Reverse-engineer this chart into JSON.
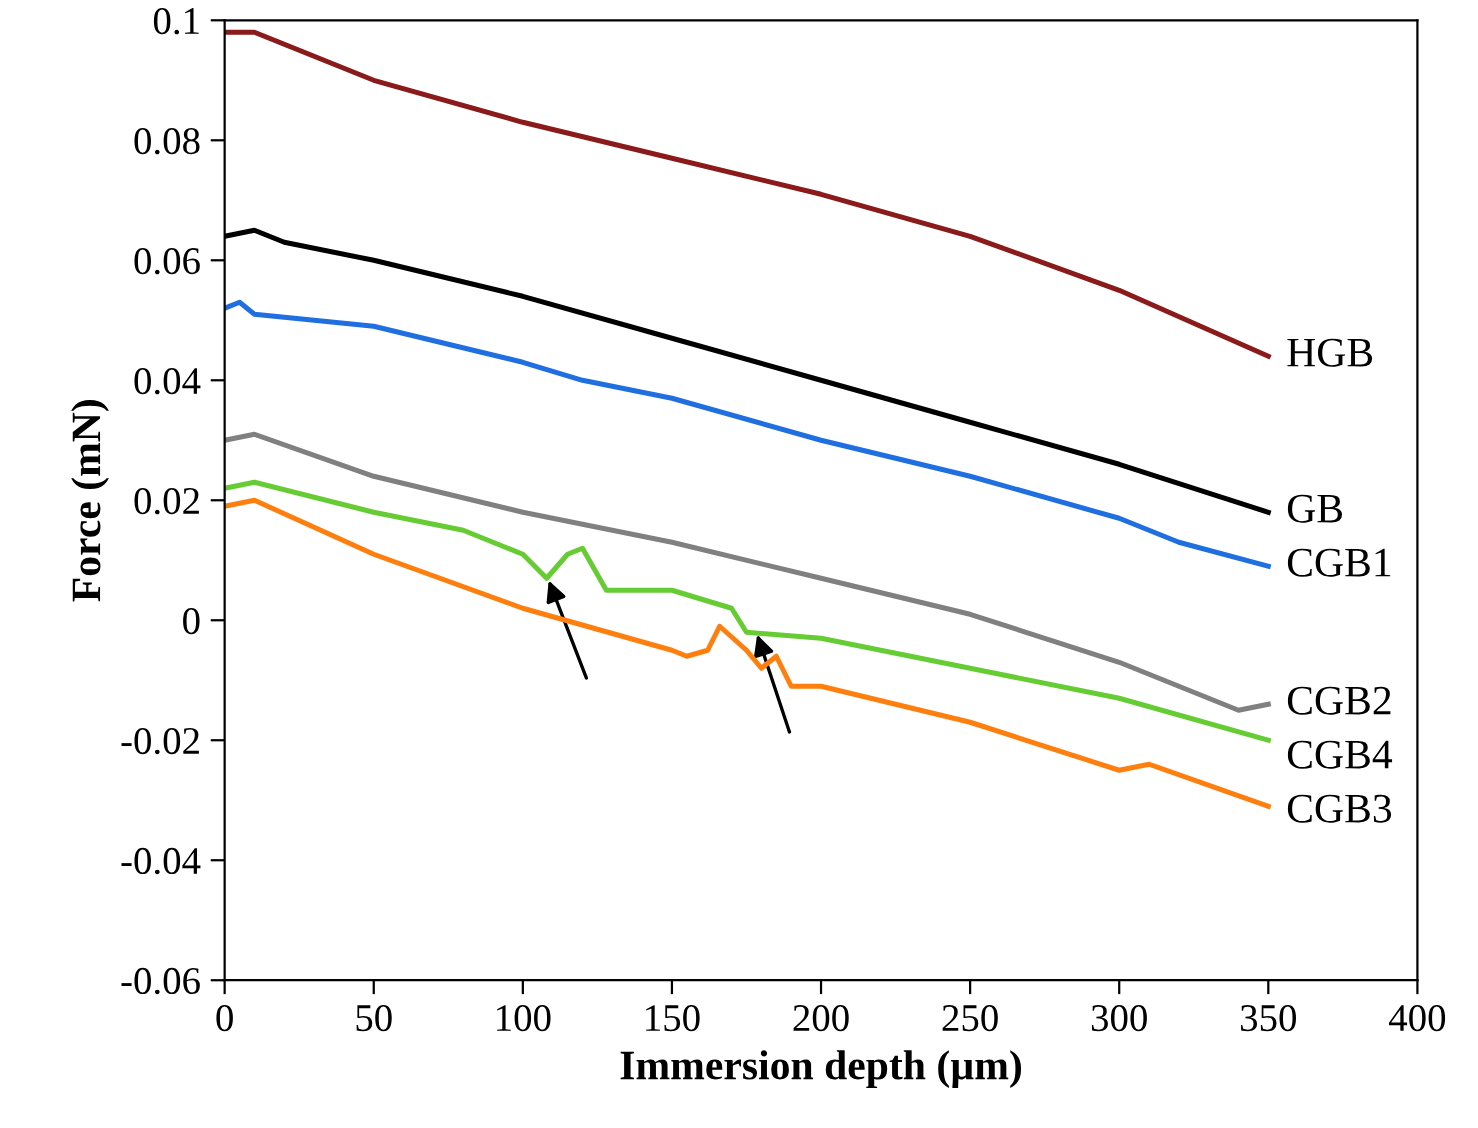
{
  "chart_data": {
    "type": "line",
    "xlabel": "Immersion depth (µm)",
    "ylabel": "Force (mN)",
    "xlim": [
      0,
      400
    ],
    "xticks": [
      0,
      50,
      100,
      150,
      200,
      250,
      300,
      350,
      400
    ],
    "ylim": [
      -0.06,
      0.1
    ],
    "yticks": [
      {
        "value": -0.06,
        "label": "-0.06"
      },
      {
        "value": -0.04,
        "label": "-0.04"
      },
      {
        "value": -0.02,
        "label": "-0.02"
      },
      {
        "value": 0,
        "label": "0"
      },
      {
        "value": 0.02,
        "label": "0.02"
      },
      {
        "value": 0.04,
        "label": "0.04"
      },
      {
        "value": 0.06,
        "label": "0.06"
      },
      {
        "value": 0.08,
        "label": "0.08"
      },
      {
        "value": 0.1,
        "label": "0.1"
      }
    ],
    "grid": false,
    "legend": false,
    "marker": "none",
    "line_style": "solid",
    "series": [
      {
        "name": "HGB",
        "color": "#8b1a1a",
        "x": [
          0,
          10,
          50,
          100,
          150,
          200,
          250,
          300,
          350
        ],
        "values": [
          0.098,
          0.098,
          0.09,
          0.083,
          0.077,
          0.071,
          0.064,
          0.055,
          0.044
        ]
      },
      {
        "name": "GB",
        "color": "#000000",
        "x": [
          0,
          10,
          20,
          50,
          100,
          150,
          200,
          250,
          300,
          350
        ],
        "values": [
          0.064,
          0.065,
          0.063,
          0.06,
          0.054,
          0.047,
          0.04,
          0.033,
          0.026,
          0.018
        ]
      },
      {
        "name": "CGB1",
        "color": "#1f6fe0",
        "x": [
          0,
          5,
          10,
          50,
          75,
          100,
          120,
          150,
          200,
          250,
          300,
          320,
          350
        ],
        "values": [
          0.052,
          0.053,
          0.051,
          0.049,
          0.046,
          0.043,
          0.04,
          0.037,
          0.03,
          0.024,
          0.017,
          0.013,
          0.009
        ]
      },
      {
        "name": "CGB2",
        "color": "#808080",
        "x": [
          0,
          10,
          50,
          100,
          150,
          200,
          250,
          300,
          330,
          340,
          350
        ],
        "values": [
          0.03,
          0.031,
          0.024,
          0.018,
          0.013,
          0.007,
          0.001,
          -0.007,
          -0.013,
          -0.015,
          -0.014
        ]
      },
      {
        "name": "CGB4",
        "color": "#66cc33",
        "x": [
          0,
          10,
          50,
          80,
          100,
          108,
          115,
          120,
          128,
          150,
          170,
          175,
          200,
          230,
          250,
          300,
          350
        ],
        "values": [
          0.022,
          0.023,
          0.018,
          0.015,
          0.011,
          0.007,
          0.011,
          0.012,
          0.005,
          0.005,
          0.002,
          -0.002,
          -0.003,
          -0.006,
          -0.008,
          -0.013,
          -0.02
        ]
      },
      {
        "name": "CGB3",
        "color": "#ff7f0e",
        "x": [
          0,
          10,
          50,
          100,
          150,
          155,
          162,
          166,
          175,
          180,
          185,
          190,
          200,
          250,
          300,
          310,
          350
        ],
        "values": [
          0.019,
          0.02,
          0.011,
          0.002,
          -0.005,
          -0.006,
          -0.005,
          -0.001,
          -0.005,
          -0.008,
          -0.006,
          -0.011,
          -0.011,
          -0.017,
          -0.025,
          -0.024,
          -0.031
        ]
      }
    ]
  }
}
